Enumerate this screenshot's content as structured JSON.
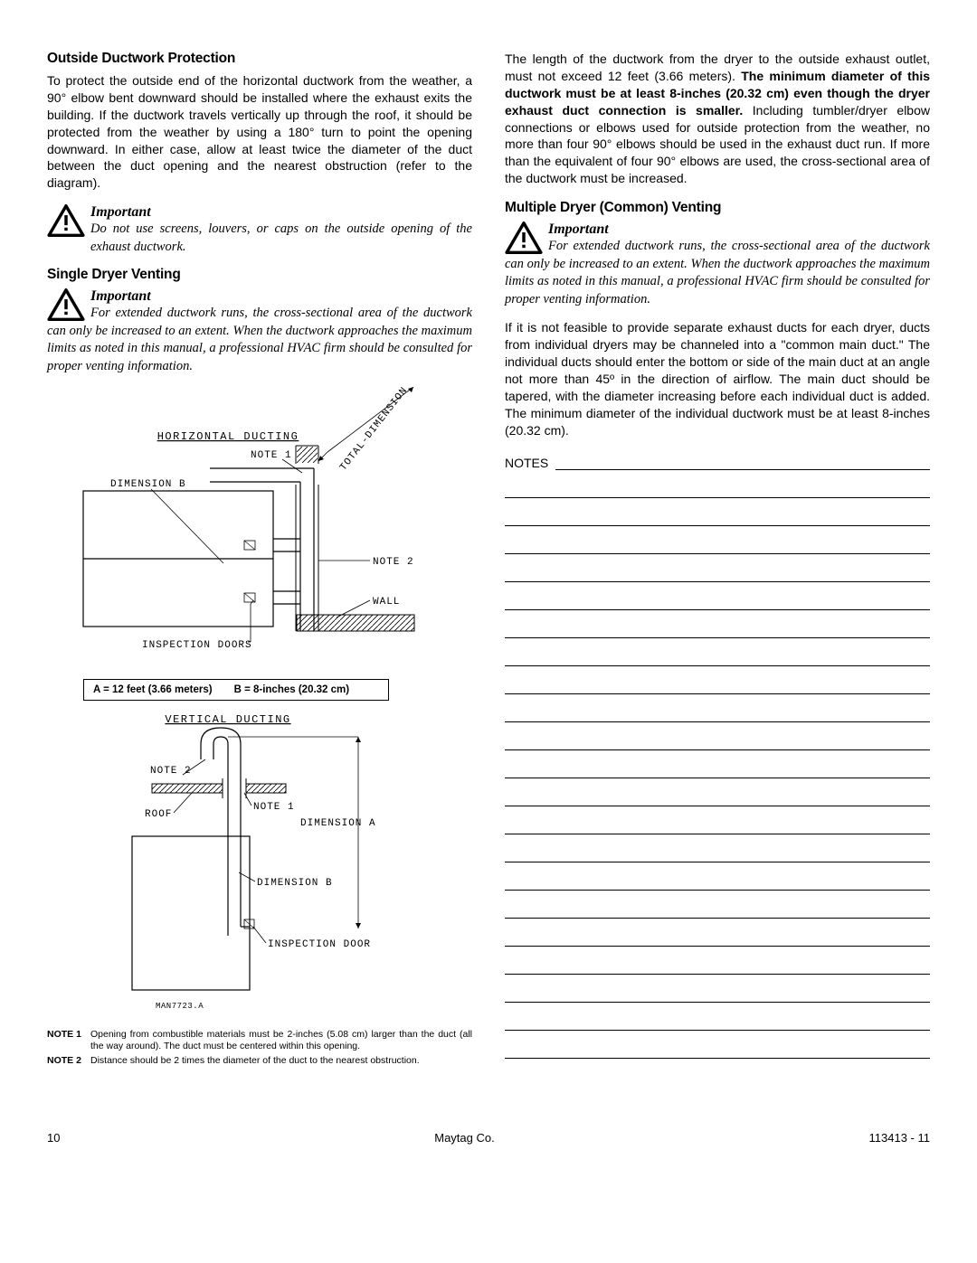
{
  "left": {
    "heading1": "Outside Ductwork Protection",
    "para1": "To protect the outside end of the horizontal ductwork from the weather, a 90° elbow bent downward should be installed where the exhaust exits the building.  If the ductwork travels vertically up through the roof, it should be protected from the weather by using a 180° turn to point the opening downward.  In either case, allow at least twice the diameter of the duct between the duct opening and the nearest obstruction (refer to the diagram).",
    "important1_title": "Important",
    "important1_text": "Do not use screens, louvers, or caps on the outside opening of the exhaust ductwork.",
    "heading2": "Single Dryer Venting",
    "important2_title": "Important",
    "important2_text": "For extended ductwork runs, the cross-sectional area of the ductwork can only be increased to an extent.  When the ductwork approaches the maximum limits as noted in this manual, a professional HVAC firm should be consulted for proper venting information.",
    "dimA": "A = 12 feet (3.66 meters)",
    "dimB": "B = 8-inches (20.32 cm)",
    "diagram1": {
      "title": "HORIZONTAL DUCTING",
      "total_dim": "TOTAL-DIMENSION A",
      "dimB_label": "DIMENSION B",
      "note1": "NOTE 1",
      "note2": "NOTE 2",
      "wall": "WALL",
      "inspection": "INSPECTION DOORS"
    },
    "diagram2": {
      "title": "VERTICAL DUCTING",
      "note1": "NOTE 1",
      "note2": "NOTE 2",
      "roof": "ROOF",
      "dimA": "DIMENSION A",
      "dimB": "DIMENSION B",
      "inspection": "INSPECTION DOOR",
      "ref": "MAN7723.A"
    },
    "footnote1_label": "NOTE 1",
    "footnote1": "Opening from combustible materials must be 2-inches (5.08 cm) larger than the duct (all the way around).  The duct must be centered within this opening.",
    "footnote2_label": "NOTE 2",
    "footnote2": "Distance should be 2 times the diameter of the duct to the nearest obstruction."
  },
  "right": {
    "para1_part1": "The length of the ductwork from the dryer to the outside exhaust outlet, must not exceed 12 feet (3.66 meters).  ",
    "para1_bold": "The minimum diameter of this ductwork must be at least 8-inches (20.32 cm) even though the dryer exhaust duct connection is smaller.",
    "para1_part2": "  Including tumbler/dryer elbow connections or elbows used for outside protection from the weather, no more than four 90° elbows should be used in the exhaust duct run.  If more than the equivalent of four 90° elbows are used, the cross-sectional area of the ductwork must be increased.",
    "heading1": "Multiple Dryer (Common) Venting",
    "important1_title": "Important",
    "important1_text": "For extended ductwork runs, the cross-sectional area of the ductwork can only be increased to an extent.  When the ductwork approaches the maximum limits as noted in this manual, a professional HVAC firm should be consulted for proper venting information.",
    "para2": "If it is not feasible to provide separate exhaust ducts for each dryer, ducts from individual dryers may be channeled into a \"common main duct.\"  The individual ducts should enter the bottom or side of the main duct at an angle not more than 45º in the direction of airflow.  The main duct should be tapered, with the diameter increasing before each individual duct is added.  The minimum diameter of the individual ductwork must be at least 8-inches (20.32 cm).",
    "notes_label": "NOTES",
    "note_line_count": 21
  },
  "footer": {
    "page": "10",
    "company": "Maytag Co.",
    "docid": "113413 - 11"
  }
}
